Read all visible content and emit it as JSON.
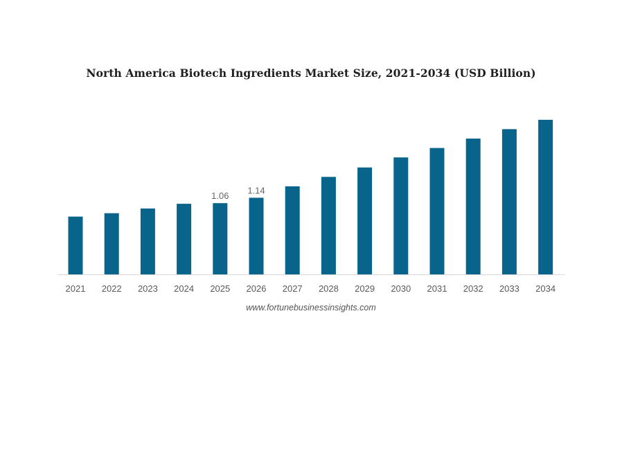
{
  "chart_data": {
    "type": "bar",
    "title": "North America Biotech Ingredients Market Size, 2021-2034 (USD Billion)",
    "xlabel": "",
    "ylabel": "",
    "categories": [
      "2021",
      "2022",
      "2023",
      "2024",
      "2025",
      "2026",
      "2027",
      "2028",
      "2029",
      "2030",
      "2031",
      "2032",
      "2033",
      "2034"
    ],
    "values": [
      0.86,
      0.91,
      0.98,
      1.05,
      1.06,
      1.14,
      1.31,
      1.45,
      1.59,
      1.74,
      1.88,
      2.02,
      2.16,
      2.3
    ],
    "data_labels": [
      "",
      "",
      "",
      "",
      "1.06",
      "1.14",
      "",
      "",
      "",
      "",
      "",
      "",
      "",
      ""
    ],
    "ylim": [
      0,
      2.35
    ],
    "bar_color": "#08648a",
    "axis_color": "#d9d9d9",
    "grid": false,
    "legend": "none"
  },
  "source": "www.fortunebusinessinsights.com"
}
